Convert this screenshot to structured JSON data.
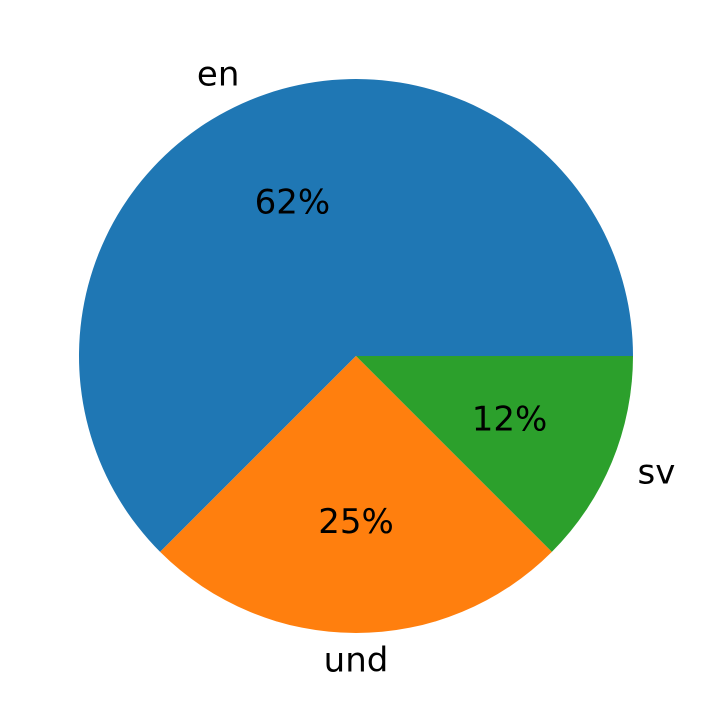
{
  "chart_data": {
    "type": "pie",
    "title": "",
    "categories": [
      "en",
      "und",
      "sv"
    ],
    "values": [
      62.5,
      25,
      12.5
    ],
    "labels": [
      "en",
      "und",
      "sv"
    ],
    "percent_labels": [
      "62%",
      "25%",
      "12%"
    ],
    "colors": [
      "#1f77b4",
      "#ff7f0e",
      "#2ca02c"
    ],
    "start_angle_deg": 0,
    "direction": "counterclockwise",
    "legend": "none",
    "grid": false
  }
}
